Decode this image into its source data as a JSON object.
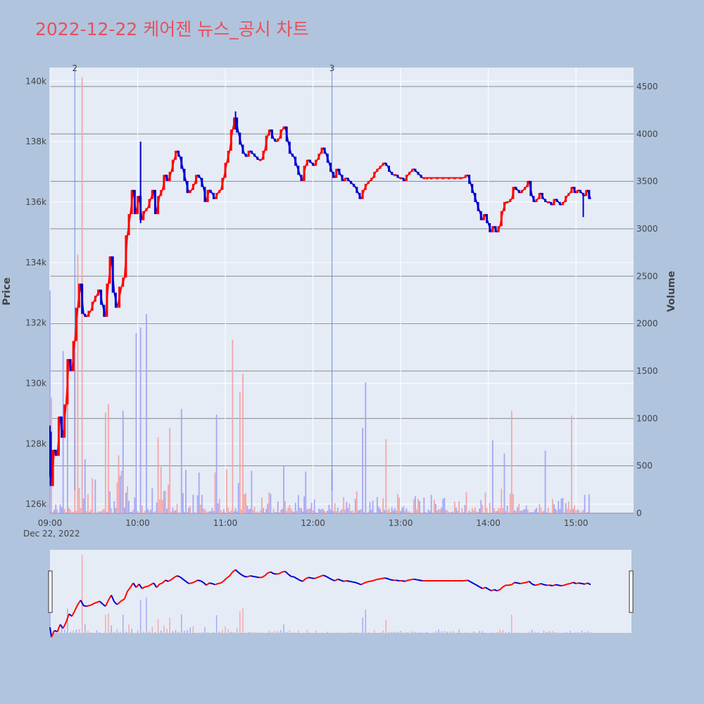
{
  "chart_data": {
    "type": "candlestick",
    "title": "2022-12-22 케어젠 뉴스_공시 차트",
    "date_label": "Dec 22, 2022",
    "ylabel": "Price",
    "y2label": "Volume",
    "ylim": [
      125700,
      140450
    ],
    "y2lim": [
      0,
      4700
    ],
    "yticks": [
      126000,
      128000,
      130000,
      132000,
      134000,
      136000,
      138000,
      140000
    ],
    "ytick_labels": [
      "126k",
      "128k",
      "130k",
      "132k",
      "134k",
      "136k",
      "138k",
      "140k"
    ],
    "y2ticks": [
      0,
      500,
      1000,
      1500,
      2000,
      2500,
      3000,
      3500,
      4000,
      4500
    ],
    "y2tick_labels": [
      "0",
      "500",
      "1000",
      "1500",
      "2000",
      "2500",
      "3000",
      "3500",
      "4000",
      "4500"
    ],
    "xlim_minutes": [
      540,
      938
    ],
    "xticks": [
      540,
      600,
      660,
      720,
      780,
      840,
      900
    ],
    "xtick_labels": [
      "09:00",
      "10:00",
      "11:00",
      "12:00",
      "13:00",
      "14:00",
      "15:00"
    ],
    "markers": [
      {
        "label": "2",
        "time_minutes": 557
      },
      {
        "label": "3",
        "time_minutes": 733
      }
    ],
    "colors": {
      "up": "#ff0000",
      "down": "#0000cd",
      "vol_up": "#f4a6a6",
      "vol_down": "#a6a6f4",
      "plot_bg": "#e5ecf6",
      "page_bg": "#b0c4de",
      "title": "#e8505b"
    },
    "price_path": [
      [
        540,
        128400
      ],
      [
        541,
        126600
      ],
      [
        543,
        127800
      ],
      [
        545,
        127600
      ],
      [
        547,
        128900
      ],
      [
        549,
        128200
      ],
      [
        551,
        129300
      ],
      [
        553,
        130800
      ],
      [
        555,
        130400
      ],
      [
        557,
        131400
      ],
      [
        559,
        132500
      ],
      [
        561,
        133300
      ],
      [
        563,
        132300
      ],
      [
        565,
        132200
      ],
      [
        568,
        132400
      ],
      [
        570,
        132700
      ],
      [
        572,
        132900
      ],
      [
        574,
        133100
      ],
      [
        576,
        132600
      ],
      [
        578,
        132200
      ],
      [
        580,
        133300
      ],
      [
        582,
        134200
      ],
      [
        584,
        133000
      ],
      [
        586,
        132500
      ],
      [
        589,
        133200
      ],
      [
        591,
        133500
      ],
      [
        593,
        134900
      ],
      [
        595,
        135600
      ],
      [
        597,
        136400
      ],
      [
        599,
        135600
      ],
      [
        601,
        136200
      ],
      [
        603,
        135400
      ],
      [
        605,
        135700
      ],
      [
        607,
        135800
      ],
      [
        609,
        136100
      ],
      [
        611,
        136400
      ],
      [
        613,
        135600
      ],
      [
        615,
        136200
      ],
      [
        617,
        136400
      ],
      [
        619,
        136900
      ],
      [
        621,
        136700
      ],
      [
        623,
        137000
      ],
      [
        625,
        137400
      ],
      [
        627,
        137700
      ],
      [
        629,
        137500
      ],
      [
        631,
        137100
      ],
      [
        633,
        136700
      ],
      [
        635,
        136300
      ],
      [
        637,
        136400
      ],
      [
        639,
        136600
      ],
      [
        641,
        136900
      ],
      [
        643,
        136800
      ],
      [
        645,
        136500
      ],
      [
        647,
        136000
      ],
      [
        649,
        136400
      ],
      [
        651,
        136300
      ],
      [
        653,
        136100
      ],
      [
        655,
        136300
      ],
      [
        657,
        136400
      ],
      [
        659,
        136800
      ],
      [
        661,
        137300
      ],
      [
        663,
        137700
      ],
      [
        665,
        138400
      ],
      [
        667,
        138800
      ],
      [
        669,
        138300
      ],
      [
        671,
        137900
      ],
      [
        673,
        137600
      ],
      [
        675,
        137500
      ],
      [
        677,
        137700
      ],
      [
        679,
        137600
      ],
      [
        681,
        137500
      ],
      [
        683,
        137400
      ],
      [
        685,
        137400
      ],
      [
        687,
        137700
      ],
      [
        689,
        138200
      ],
      [
        691,
        138400
      ],
      [
        693,
        138100
      ],
      [
        695,
        138000
      ],
      [
        697,
        138100
      ],
      [
        699,
        138400
      ],
      [
        701,
        138500
      ],
      [
        703,
        138000
      ],
      [
        705,
        137600
      ],
      [
        707,
        137500
      ],
      [
        709,
        137200
      ],
      [
        711,
        136900
      ],
      [
        713,
        136700
      ],
      [
        715,
        137200
      ],
      [
        717,
        137400
      ],
      [
        719,
        137300
      ],
      [
        721,
        137200
      ],
      [
        723,
        137400
      ],
      [
        725,
        137600
      ],
      [
        727,
        137800
      ],
      [
        729,
        137600
      ],
      [
        731,
        137300
      ],
      [
        733,
        137000
      ],
      [
        735,
        136800
      ],
      [
        737,
        137100
      ],
      [
        739,
        136900
      ],
      [
        741,
        136700
      ],
      [
        743,
        136800
      ],
      [
        745,
        136700
      ],
      [
        747,
        136600
      ],
      [
        749,
        136500
      ],
      [
        751,
        136300
      ],
      [
        753,
        136100
      ],
      [
        755,
        136400
      ],
      [
        757,
        136600
      ],
      [
        759,
        136700
      ],
      [
        761,
        136800
      ],
      [
        763,
        137000
      ],
      [
        765,
        137100
      ],
      [
        767,
        137200
      ],
      [
        769,
        137300
      ],
      [
        771,
        137200
      ],
      [
        773,
        137000
      ],
      [
        775,
        136900
      ],
      [
        777,
        136900
      ],
      [
        779,
        136800
      ],
      [
        781,
        136800
      ],
      [
        783,
        136700
      ],
      [
        785,
        136900
      ],
      [
        787,
        137000
      ],
      [
        789,
        137100
      ],
      [
        791,
        137000
      ],
      [
        793,
        136900
      ],
      [
        795,
        136800
      ],
      [
        797,
        136800
      ],
      [
        799,
        136800
      ],
      [
        803,
        136800
      ],
      [
        807,
        136800
      ],
      [
        811,
        136800
      ],
      [
        815,
        136800
      ],
      [
        819,
        136800
      ],
      [
        823,
        136800
      ],
      [
        826,
        136900
      ],
      [
        828,
        136600
      ],
      [
        830,
        136300
      ],
      [
        832,
        136000
      ],
      [
        834,
        135700
      ],
      [
        836,
        135400
      ],
      [
        838,
        135600
      ],
      [
        840,
        135300
      ],
      [
        842,
        135000
      ],
      [
        844,
        135200
      ],
      [
        846,
        135000
      ],
      [
        848,
        135200
      ],
      [
        850,
        135700
      ],
      [
        852,
        136000
      ],
      [
        854,
        136000
      ],
      [
        856,
        136100
      ],
      [
        858,
        136500
      ],
      [
        860,
        136400
      ],
      [
        862,
        136300
      ],
      [
        864,
        136400
      ],
      [
        866,
        136500
      ],
      [
        868,
        136700
      ],
      [
        870,
        136200
      ],
      [
        872,
        136000
      ],
      [
        874,
        136100
      ],
      [
        876,
        136300
      ],
      [
        878,
        136100
      ],
      [
        880,
        136000
      ],
      [
        882,
        136000
      ],
      [
        884,
        135900
      ],
      [
        886,
        136100
      ],
      [
        888,
        136000
      ],
      [
        890,
        135900
      ],
      [
        892,
        136000
      ],
      [
        894,
        136200
      ],
      [
        896,
        136300
      ],
      [
        898,
        136500
      ],
      [
        900,
        136300
      ],
      [
        902,
        136400
      ],
      [
        904,
        136300
      ],
      [
        906,
        136200
      ],
      [
        908,
        136400
      ],
      [
        910,
        136100
      ]
    ],
    "spikes": [
      {
        "t": 540,
        "low": 126900,
        "high": 128600
      },
      {
        "t": 602,
        "low": 135300,
        "high": 138000
      },
      {
        "t": 667,
        "low": 138400,
        "high": 139000
      },
      {
        "t": 905,
        "low": 135500,
        "high": 136200
      }
    ],
    "volume_spikes": [
      [
        540,
        2350,
        "down"
      ],
      [
        541,
        1220,
        "up"
      ],
      [
        549,
        1710,
        "down"
      ],
      [
        552,
        1440,
        "down"
      ],
      [
        557,
        1700,
        "up"
      ],
      [
        559,
        2730,
        "up"
      ],
      [
        562,
        4600,
        "up"
      ],
      [
        578,
        1060,
        "up"
      ],
      [
        580,
        1150,
        "up"
      ],
      [
        590,
        1080,
        "down"
      ],
      [
        599,
        1900,
        "down"
      ],
      [
        602,
        1960,
        "down"
      ],
      [
        606,
        2100,
        "down"
      ],
      [
        614,
        800,
        "up"
      ],
      [
        622,
        900,
        "up"
      ],
      [
        630,
        1100,
        "down"
      ],
      [
        654,
        1040,
        "down"
      ],
      [
        665,
        1830,
        "up"
      ],
      [
        670,
        1280,
        "up"
      ],
      [
        672,
        1470,
        "up"
      ],
      [
        700,
        500,
        "down"
      ],
      [
        715,
        440,
        "down"
      ],
      [
        733,
        460,
        "down"
      ],
      [
        754,
        900,
        "down"
      ],
      [
        756,
        1380,
        "down"
      ],
      [
        770,
        780,
        "up"
      ],
      [
        843,
        770,
        "down"
      ],
      [
        851,
        630,
        "down"
      ],
      [
        856,
        1080,
        "up"
      ],
      [
        879,
        660,
        "down"
      ],
      [
        897,
        1030,
        "up"
      ]
    ]
  }
}
